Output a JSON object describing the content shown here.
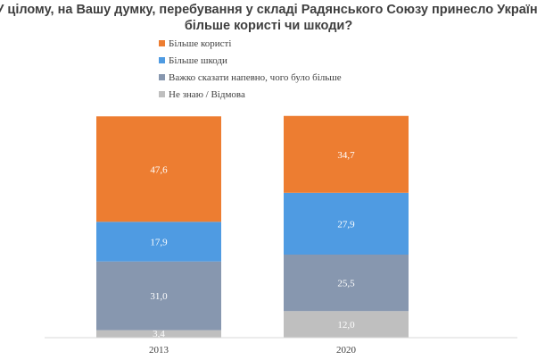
{
  "chart_data": {
    "type": "bar",
    "stacked": true,
    "orientation": "vertical",
    "title": "У цілому, на Вашу думку, перебування у складі Радянського Союзу принесло Україні більше користі чи шкоди?",
    "title_lines": [
      "У цілому, на Вашу думку, перебування у складі Радянського Союзу принесло Україні",
      "більше користі чи шкоди?"
    ],
    "categories": [
      "2013",
      "2020"
    ],
    "series": [
      {
        "name": "Більше користі",
        "values": [
          47.6,
          34.7
        ],
        "labels": [
          "47,6",
          "34,7"
        ],
        "color": "#ED7D31"
      },
      {
        "name": "Більше шкоди",
        "values": [
          17.9,
          27.9
        ],
        "labels": [
          "17,9",
          "27,9"
        ],
        "color": "#4F9BE2"
      },
      {
        "name": "Важко сказати напевно, чого було більше",
        "values": [
          31.0,
          25.5
        ],
        "labels": [
          "31,0",
          "25,5"
        ],
        "color": "#8797AF"
      },
      {
        "name": "Не знаю / Відмова",
        "values": [
          3.4,
          12.0
        ],
        "labels": [
          "3,4",
          "12,0"
        ],
        "color": "#BFBFBF"
      }
    ],
    "stack_order_bottom_to_top": [
      "Не знаю / Відмова",
      "Важко сказати напевно, чого було більше",
      "Більше шкоди",
      "Більше користі"
    ],
    "ylim": [
      0,
      100
    ],
    "xlabel": "",
    "ylabel": "",
    "grid": false,
    "legend": "top-center",
    "colors": {
      "axis": "#D9D9D9",
      "title": "#3F3F3F",
      "text": "#404040",
      "label_on_bar": "#FFFFFF"
    }
  }
}
